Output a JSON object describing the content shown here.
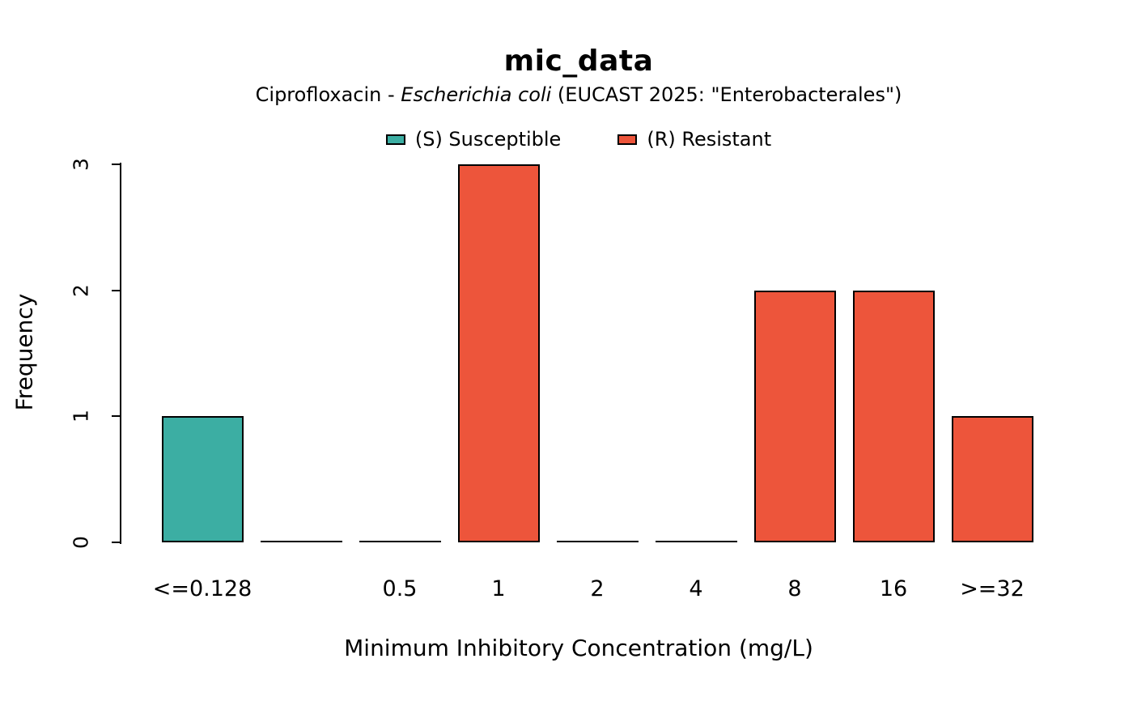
{
  "chart_data": {
    "type": "bar",
    "title": "mic_data",
    "subtitle": "Ciprofloxacin - Escherichia coli (EUCAST 2025: \"Enterobacterales\")",
    "subtitle_prefix": "Ciprofloxacin - ",
    "subtitle_italic": "Escherichia coli",
    "subtitle_suffix": " (EUCAST 2025: \"Enterobacterales\")",
    "xlabel": "Minimum Inhibitory Concentration (mg/L)",
    "ylabel": "Frequency",
    "categories": [
      "<=0.128",
      "",
      "0.5",
      "1",
      "2",
      "4",
      "8",
      "16",
      ">=32"
    ],
    "values": [
      1,
      0,
      0,
      3,
      0,
      0,
      2,
      2,
      1
    ],
    "bar_interpretations": [
      "S",
      "none",
      "none",
      "R",
      "none",
      "none",
      "R",
      "R",
      "R"
    ],
    "bar_colors": [
      "#3CAEA3",
      "#ED553B",
      "#ED553B",
      "#ED553B",
      "#ED553B",
      "#ED553B",
      "#ED553B",
      "#ED553B",
      "#ED553B"
    ],
    "ylim": [
      0,
      3
    ],
    "yticks": [
      0,
      1,
      2,
      3
    ],
    "grid": false,
    "legend_position": "top-center",
    "legend": [
      {
        "label": "(S) Susceptible",
        "color": "#3CAEA3",
        "key": "susceptible"
      },
      {
        "label": "(R) Resistant",
        "color": "#ED553B",
        "key": "resistant"
      }
    ],
    "colors": {
      "susceptible": "#3CAEA3",
      "resistant": "#ED553B",
      "axis": "#000000",
      "background": "#FFFFFF"
    }
  }
}
